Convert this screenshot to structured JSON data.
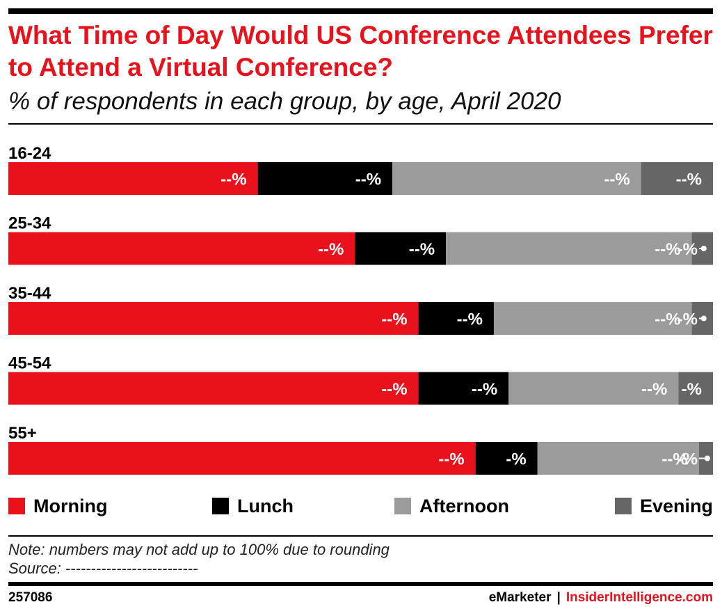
{
  "header": {
    "title": "What Time of Day Would US Conference Attendees Prefer to Attend a Virtual Conference?",
    "subtitle": "% of respondents in each group, by age, April 2020"
  },
  "chart_data": {
    "type": "bar",
    "orientation": "horizontal",
    "stacked": true,
    "unit": "%",
    "categories": [
      "16-24",
      "25-34",
      "35-44",
      "45-54",
      "55+"
    ],
    "series": [
      {
        "name": "Morning",
        "color": "#e8111c",
        "values": [
          35.4,
          49.2,
          58.2,
          58.2,
          66.3
        ],
        "labels": [
          "--%",
          "--%",
          "--%",
          "--%",
          "--%"
        ]
      },
      {
        "name": "Lunch",
        "color": "#000000",
        "values": [
          19.1,
          12.9,
          10.7,
          12.8,
          8.8
        ],
        "labels": [
          "--%",
          "--%",
          "--%",
          "--%",
          "-%"
        ]
      },
      {
        "name": "Afternoon",
        "color": "#9b9b9b",
        "values": [
          35.3,
          34.9,
          28.1,
          24.1,
          22.9
        ],
        "labels": [
          "--%",
          "--%",
          "--%",
          "--%",
          "--%"
        ]
      },
      {
        "name": "Evening",
        "color": "#666666",
        "values": [
          10.2,
          3.0,
          3.0,
          4.9,
          2.0
        ],
        "labels": [
          "--%",
          "-%",
          "-%",
          "-%",
          "-%"
        ]
      }
    ],
    "xlim": [
      0,
      100
    ],
    "legend_position": "bottom",
    "grid": false
  },
  "legend": {
    "items": [
      {
        "label": "Morning",
        "color": "#e8111c"
      },
      {
        "label": "Lunch",
        "color": "#000000"
      },
      {
        "label": "Afternoon",
        "color": "#9b9b9b"
      },
      {
        "label": "Evening",
        "color": "#666666"
      }
    ]
  },
  "notes": {
    "note": "Note: numbers may not add up to 100% due to rounding",
    "source": "Source: --------------------------"
  },
  "footer": {
    "id": "257086",
    "brand_a": "eMarketer",
    "separator": "|",
    "brand_b": "InsiderIntelligence.com"
  }
}
